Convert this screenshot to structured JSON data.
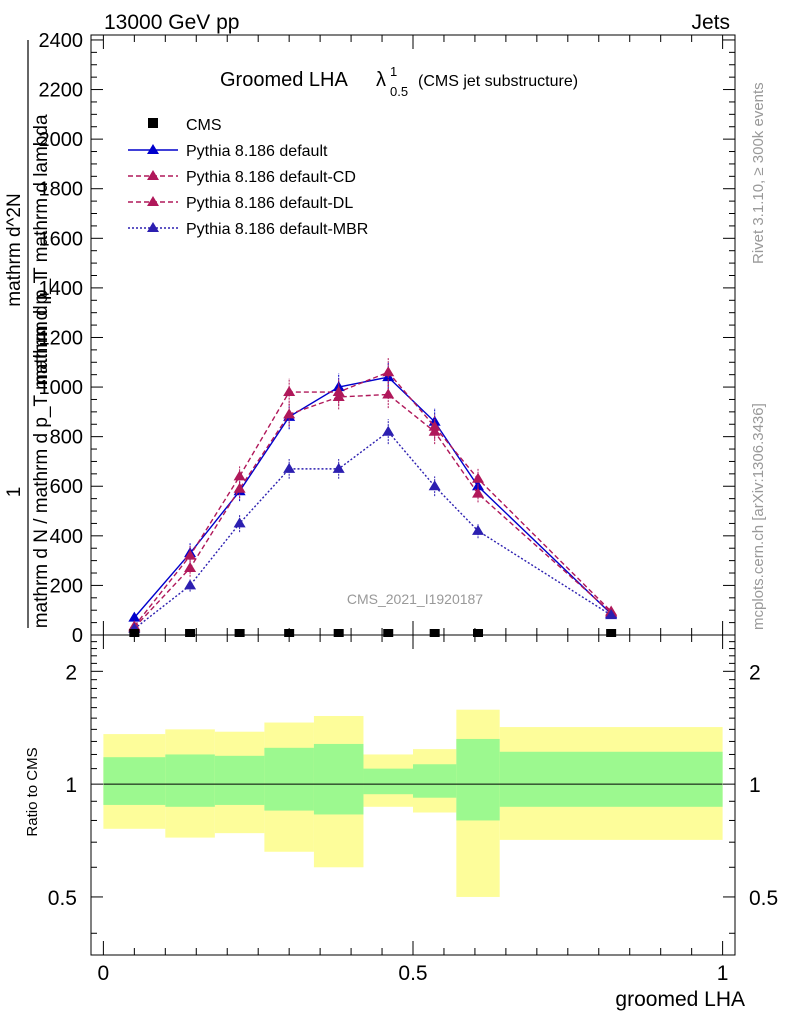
{
  "header": {
    "left": "13000 GeV pp",
    "right": "Jets",
    "plot_title": "Groomed LHA",
    "plot_title_lambda": "λ",
    "plot_title_sup": "1",
    "plot_title_sub": "0.5",
    "plot_title_note": "(CMS jet substructure)"
  },
  "side_labels": {
    "rivet": "Rivet 3.1.10, ≥ 300k events",
    "mcplots": "mcplots.cern.ch [arXiv:1306.3436]"
  },
  "watermark": "CMS_2021_I1920187",
  "chart_data": {
    "type": "line",
    "title": "Groomed LHA λ^1_0.5 (CMS jet substructure)",
    "xlabel": "groomed LHA",
    "ylabel_main": {
      "numerator_top": "1",
      "denominator_top": "mathrm d N / mathrm d p_T mathrm d p_T",
      "frac_num": "mathrm d^2N",
      "frac_den": "mathrm d p_T mathrm d lambda"
    },
    "ylabel_ratio": "Ratio to CMS",
    "xlim": [
      -0.02,
      1.02
    ],
    "ylim": [
      0,
      2420
    ],
    "ratio_ylim": [
      0.35,
      2.5
    ],
    "x_ticks": [
      0,
      0.5,
      1
    ],
    "x_tick_labels": [
      "0",
      "0.5",
      "1"
    ],
    "y_ticks": [
      0,
      200,
      400,
      600,
      800,
      1000,
      1200,
      1400,
      1600,
      1800,
      2000,
      2200,
      2400
    ],
    "y_tick_labels": [
      "0",
      "200",
      "400",
      "600",
      "800",
      "1000",
      "1200",
      "1400",
      "1600",
      "1800",
      "2000",
      "2200",
      "2400"
    ],
    "ratio_ticks": [
      0.5,
      1,
      2
    ],
    "ratio_tick_labels": [
      "0.5",
      "1",
      "2"
    ],
    "x": [
      0.05,
      0.14,
      0.22,
      0.3,
      0.38,
      0.46,
      0.535,
      0.605,
      0.82
    ],
    "bin_edges": [
      0,
      0.1,
      0.18,
      0.26,
      0.34,
      0.42,
      0.5,
      0.57,
      0.64,
      1.0
    ],
    "cms": {
      "name": "CMS",
      "values": [
        2,
        2,
        2,
        3,
        3,
        3,
        3,
        2,
        1
      ],
      "band_inner": [
        [
          0.88,
          1.18
        ],
        [
          0.87,
          1.2
        ],
        [
          0.88,
          1.19
        ],
        [
          0.85,
          1.25
        ],
        [
          0.83,
          1.28
        ],
        [
          0.94,
          1.1
        ],
        [
          0.92,
          1.13
        ],
        [
          0.8,
          1.32
        ],
        [
          0.87,
          1.22
        ]
      ],
      "band_outer": [
        [
          0.76,
          1.36
        ],
        [
          0.72,
          1.4
        ],
        [
          0.74,
          1.38
        ],
        [
          0.66,
          1.46
        ],
        [
          0.6,
          1.52
        ],
        [
          0.87,
          1.2
        ],
        [
          0.84,
          1.24
        ],
        [
          0.5,
          1.58
        ],
        [
          0.71,
          1.42
        ]
      ]
    },
    "series": [
      {
        "name": "Pythia 8.186 default",
        "color": "#0000cc",
        "dash": "",
        "values": [
          70,
          330,
          580,
          880,
          1000,
          1040,
          860,
          600,
          85
        ],
        "errors": [
          15,
          40,
          40,
          50,
          55,
          60,
          55,
          40,
          15
        ]
      },
      {
        "name": "Pythia 8.186 default-CD",
        "color": "#b0185a",
        "dash": "5,3",
        "values": [
          35,
          320,
          640,
          980,
          980,
          1060,
          840,
          630,
          95
        ],
        "errors": [
          15,
          40,
          40,
          55,
          55,
          60,
          50,
          40,
          15
        ]
      },
      {
        "name": "Pythia 8.186 default-DL",
        "color": "#b0185a",
        "dash": "5,3",
        "values": [
          30,
          270,
          590,
          890,
          960,
          970,
          820,
          570,
          90
        ],
        "errors": [
          15,
          35,
          40,
          50,
          50,
          55,
          50,
          35,
          15
        ]
      },
      {
        "name": "Pythia 8.186 default-MBR",
        "color": "#2c1fb0",
        "dash": "2,2",
        "values": [
          25,
          200,
          450,
          670,
          670,
          820,
          600,
          420,
          80
        ],
        "errors": [
          10,
          25,
          35,
          40,
          40,
          50,
          40,
          30,
          12
        ]
      }
    ],
    "colors": {
      "band_inner": "#9cf98f",
      "band_outer": "#fdfd9a",
      "axis": "#000000",
      "grey_text": "#999999"
    }
  }
}
